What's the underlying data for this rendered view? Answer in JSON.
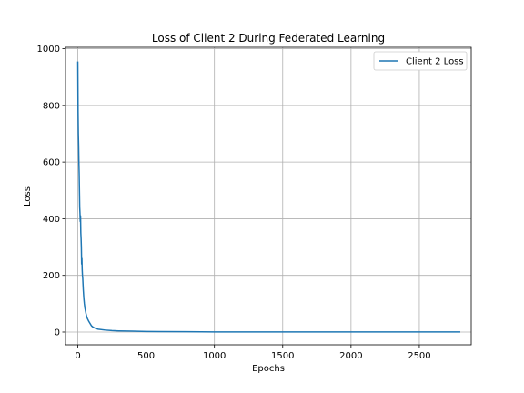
{
  "chart_data": {
    "type": "line",
    "title": "Loss of Client 2 During Federated Learning",
    "xlabel": "Epochs",
    "ylabel": "Loss",
    "xlim": [
      -90,
      2880
    ],
    "ylim": [
      -45,
      1005
    ],
    "xticks": [
      0,
      500,
      1000,
      1500,
      2000,
      2500
    ],
    "yticks": [
      0,
      200,
      400,
      600,
      800,
      1000
    ],
    "grid": true,
    "legend_position": "top-right",
    "series": [
      {
        "name": "Client 2 Loss",
        "color": "#1f77b4",
        "x": [
          0,
          2,
          4,
          6,
          8,
          10,
          12,
          14,
          16,
          18,
          20,
          22,
          24,
          26,
          28,
          30,
          32,
          34,
          36,
          38,
          40,
          44,
          48,
          52,
          56,
          60,
          65,
          70,
          80,
          90,
          100,
          110,
          125,
          150,
          200,
          250,
          300,
          400,
          500,
          600,
          800,
          1000,
          1500,
          2000,
          2500,
          2800
        ],
        "y": [
          955,
          780,
          700,
          660,
          600,
          560,
          500,
          440,
          420,
          390,
          410,
          350,
          330,
          300,
          240,
          260,
          220,
          200,
          190,
          170,
          150,
          120,
          100,
          85,
          75,
          65,
          55,
          48,
          38,
          30,
          22,
          18,
          14,
          10,
          7,
          5,
          4,
          3,
          2,
          1.5,
          1,
          0.5,
          0.3,
          0.2,
          0.2,
          0.2
        ]
      }
    ]
  }
}
